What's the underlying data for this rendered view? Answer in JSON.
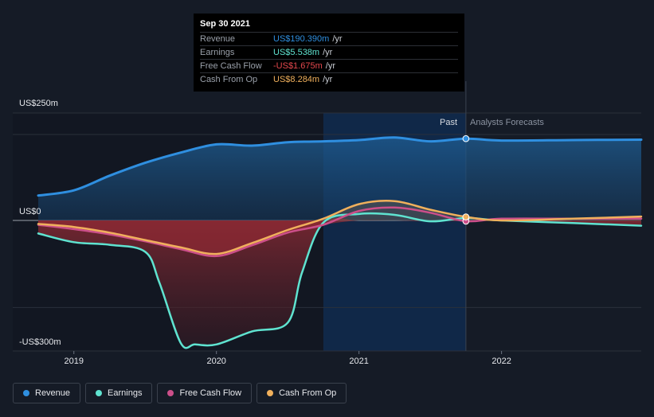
{
  "chart_data": {
    "type": "line",
    "y_axis": {
      "top_label": "US$250m",
      "zero_label": "US$0",
      "bottom_label": "-US$300m",
      "ylim": [
        -300,
        250
      ]
    },
    "x_axis": {
      "ticks": [
        "2019",
        "2020",
        "2021",
        "2022"
      ],
      "xlim": [
        2018.75,
        2022.98
      ]
    },
    "past_label": "Past",
    "forecast_label": "Analysts Forecasts",
    "past_end_x": 2021.75,
    "highlight_start_x": 2020.75,
    "series": [
      {
        "name": "Revenue",
        "color": "#2f8fe0",
        "x": [
          2018.75,
          2019.0,
          2019.25,
          2019.5,
          2019.75,
          2020.0,
          2020.25,
          2020.5,
          2020.75,
          2021.0,
          2021.25,
          2021.5,
          2021.75,
          2022.0,
          2022.5,
          2022.98
        ],
        "values": [
          58,
          70,
          104,
          134,
          158,
          177,
          174,
          182,
          184,
          187,
          193,
          184,
          190.39,
          186,
          187,
          188
        ]
      },
      {
        "name": "Earnings",
        "color": "#5fe3d0",
        "x": [
          2018.75,
          2019.0,
          2019.25,
          2019.5,
          2019.6,
          2019.75,
          2019.85,
          2020.0,
          2020.25,
          2020.5,
          2020.6,
          2020.75,
          2021.0,
          2021.25,
          2021.5,
          2021.75,
          2022.0,
          2022.5,
          2022.98
        ],
        "values": [
          -30,
          -50,
          -56,
          -72,
          -143,
          -282,
          -285,
          -285,
          -255,
          -235,
          -120,
          -5,
          15,
          13,
          -2,
          5.538,
          0,
          -6,
          -12
        ]
      },
      {
        "name": "Free Cash Flow",
        "color": "#cc4f8a",
        "x": [
          2018.75,
          2019.0,
          2019.25,
          2019.5,
          2019.75,
          2020.0,
          2020.25,
          2020.5,
          2020.75,
          2021.0,
          2021.25,
          2021.5,
          2021.75,
          2022.0,
          2022.5,
          2022.98
        ],
        "values": [
          -10,
          -20,
          -32,
          -48,
          -66,
          -82,
          -57,
          -28,
          -10,
          22,
          30,
          18,
          -1.675,
          4,
          4,
          4
        ]
      },
      {
        "name": "Cash From Op",
        "color": "#f0b05c",
        "x": [
          2018.75,
          2019.0,
          2019.25,
          2019.5,
          2019.75,
          2020.0,
          2020.25,
          2020.5,
          2020.75,
          2021.0,
          2021.25,
          2021.5,
          2021.75,
          2022.0,
          2022.5,
          2022.98
        ],
        "values": [
          -8,
          -15,
          -28,
          -45,
          -62,
          -77,
          -52,
          -22,
          4,
          38,
          45,
          25,
          8.284,
          0,
          4,
          9
        ]
      }
    ]
  },
  "tooltip": {
    "date": "Sep 30 2021",
    "unit": "/yr",
    "rows": [
      {
        "label": "Revenue",
        "value": "US$190.390m",
        "color": "#2f8fe0"
      },
      {
        "label": "Earnings",
        "value": "US$5.538m",
        "color": "#5fe3d0"
      },
      {
        "label": "Free Cash Flow",
        "value": "-US$1.675m",
        "color": "#e5484d"
      },
      {
        "label": "Cash From Op",
        "value": "US$8.284m",
        "color": "#f0b05c"
      }
    ]
  },
  "legend": [
    {
      "label": "Revenue",
      "color": "#2f8fe0"
    },
    {
      "label": "Earnings",
      "color": "#5fe3d0"
    },
    {
      "label": "Free Cash Flow",
      "color": "#cc4f8a"
    },
    {
      "label": "Cash From Op",
      "color": "#f0b05c"
    }
  ]
}
